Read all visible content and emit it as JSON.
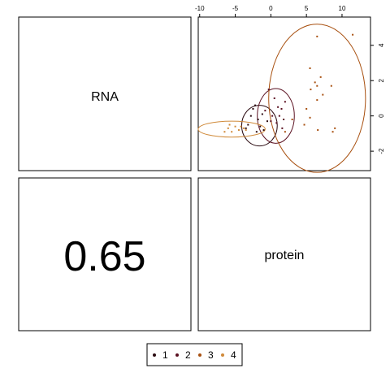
{
  "chart_data": {
    "type": "scatter",
    "variables": [
      "RNA",
      "protein"
    ],
    "correlation_text": "0.65",
    "x_ticks": [
      -10,
      -5,
      0,
      5,
      10
    ],
    "y_ticks": [
      -2,
      0,
      2,
      4
    ],
    "x_range": [
      -10.2,
      14
    ],
    "y_range": [
      -3.1,
      5.6
    ],
    "legend": {
      "placement": "bottom-center",
      "entries": [
        "1",
        "2",
        "3",
        "4"
      ]
    },
    "series": [
      {
        "name": "1",
        "color": "#2a0a10",
        "points": [
          [
            -2.5,
            0.4
          ],
          [
            -1.8,
            -0.2
          ],
          [
            -1.2,
            0.1
          ],
          [
            -2.0,
            -0.9
          ],
          [
            -3.2,
            -0.5
          ],
          [
            -0.5,
            -0.3
          ],
          [
            -1.5,
            -0.6
          ],
          [
            -2.8,
            0.0
          ],
          [
            -1.0,
            -0.8
          ],
          [
            -3.5,
            -0.7
          ],
          [
            -2.2,
            0.6
          ]
        ],
        "ellipse": {
          "cx": -1.6,
          "cy": -0.55,
          "rx": 2.5,
          "ry": 1.15
        }
      },
      {
        "name": "2",
        "color": "#5a1020",
        "points": [
          [
            0.5,
            1.0
          ],
          [
            1.0,
            0.5
          ],
          [
            1.5,
            0.4
          ],
          [
            0.2,
            0.0
          ],
          [
            1.8,
            -0.2
          ],
          [
            -0.3,
            1.5
          ],
          [
            0.8,
            -0.4
          ],
          [
            1.2,
            0.0
          ],
          [
            0.0,
            -0.3
          ],
          [
            2.0,
            0.8
          ],
          [
            -0.8,
            0.3
          ],
          [
            1.6,
            -0.7
          ]
        ],
        "ellipse": {
          "cx": 0.7,
          "cy": 0.0,
          "rx": 2.6,
          "ry": 1.55
        }
      },
      {
        "name": "3",
        "color": "#a85010",
        "points": [
          [
            6.5,
            4.5
          ],
          [
            11.5,
            4.6
          ],
          [
            5.5,
            2.7
          ],
          [
            6.2,
            1.9
          ],
          [
            7.0,
            2.2
          ],
          [
            8.5,
            1.7
          ],
          [
            6.5,
            1.7
          ],
          [
            7.3,
            1.2
          ],
          [
            5.6,
            1.5
          ],
          [
            6.5,
            0.9
          ],
          [
            5.0,
            0.4
          ],
          [
            4.7,
            -0.5
          ],
          [
            6.6,
            -0.8
          ],
          [
            9.0,
            -0.7
          ],
          [
            3.0,
            -0.2
          ],
          [
            2.0,
            -0.9
          ],
          [
            5.5,
            -0.1
          ],
          [
            8.7,
            -0.9
          ]
        ],
        "ellipse": {
          "cx": 6.5,
          "cy": 1.0,
          "rx": 6.8,
          "ry": 4.2
        }
      },
      {
        "name": "4",
        "color": "#d08a3a",
        "points": [
          [
            -5.0,
            -0.6
          ],
          [
            -6.0,
            -0.7
          ],
          [
            -5.5,
            -0.9
          ],
          [
            -4.5,
            -0.8
          ],
          [
            -3.8,
            -0.7
          ],
          [
            -5.8,
            -0.5
          ],
          [
            -4.2,
            -0.6
          ],
          [
            -6.5,
            -0.9
          ],
          [
            -3.5,
            -0.8
          ]
        ],
        "ellipse": {
          "cx": -5.5,
          "cy": -0.75,
          "rx": 4.7,
          "ry": 0.45
        }
      }
    ]
  }
}
